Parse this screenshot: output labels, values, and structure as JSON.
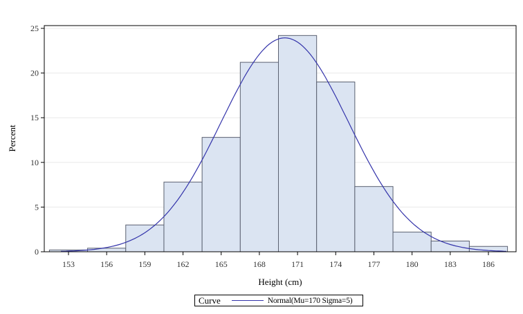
{
  "chart_data": {
    "type": "bar",
    "subtype": "histogram_with_density_curve",
    "title": "",
    "xlabel": "Height (cm)",
    "ylabel": "Percent",
    "xlim": [
      151.2,
      188.3
    ],
    "ylim": [
      0,
      25.3
    ],
    "yticks": [
      0,
      5,
      10,
      15,
      20,
      25
    ],
    "xticks": [
      153,
      156,
      159,
      162,
      165,
      168,
      171,
      174,
      177,
      180,
      183,
      186
    ],
    "grid": {
      "y": true,
      "x": false
    },
    "bin_width": 3,
    "bins": [
      {
        "start": 151.5,
        "end": 154.5,
        "center": 153,
        "value": 0.2
      },
      {
        "start": 154.5,
        "end": 157.5,
        "center": 156,
        "value": 0.4
      },
      {
        "start": 157.5,
        "end": 160.5,
        "center": 159,
        "value": 3.0
      },
      {
        "start": 160.5,
        "end": 163.5,
        "center": 162,
        "value": 7.8
      },
      {
        "start": 163.5,
        "end": 166.5,
        "center": 165,
        "value": 12.8
      },
      {
        "start": 166.5,
        "end": 169.5,
        "center": 168,
        "value": 21.2
      },
      {
        "start": 169.5,
        "end": 172.5,
        "center": 171,
        "value": 24.2
      },
      {
        "start": 172.5,
        "end": 175.5,
        "center": 174,
        "value": 19.0
      },
      {
        "start": 175.5,
        "end": 178.5,
        "center": 177,
        "value": 7.3
      },
      {
        "start": 178.5,
        "end": 181.5,
        "center": 180,
        "value": 2.2
      },
      {
        "start": 181.5,
        "end": 184.5,
        "center": 183,
        "value": 1.2
      },
      {
        "start": 184.5,
        "end": 187.5,
        "center": 186,
        "value": 0.6
      }
    ],
    "categories": [
      "153",
      "156",
      "159",
      "162",
      "165",
      "168",
      "171",
      "174",
      "177",
      "180",
      "183",
      "186"
    ],
    "values": [
      0.2,
      0.4,
      3.0,
      7.8,
      12.8,
      21.2,
      24.2,
      19.0,
      7.3,
      2.2,
      1.2,
      0.6
    ],
    "curve": {
      "type": "normal",
      "mu": 170,
      "sigma": 5,
      "scale_percent_per_bin": 3
    },
    "legend": {
      "position": "bottom",
      "title": "Curve",
      "entries": [
        {
          "label": "Normal(Mu=170 Sigma=5)",
          "color": "#3333aa"
        }
      ]
    },
    "colors": {
      "bar_fill": "#dbe4f2",
      "bar_stroke": "#5a6070",
      "curve": "#3333aa",
      "grid": "#e8e8e8",
      "axis": "#000000"
    }
  },
  "axes": {
    "x_label": "Height (cm)",
    "y_label": "Percent"
  },
  "legend": {
    "title": "Curve",
    "entry_label": "Normal(Mu=170 Sigma=5)"
  }
}
